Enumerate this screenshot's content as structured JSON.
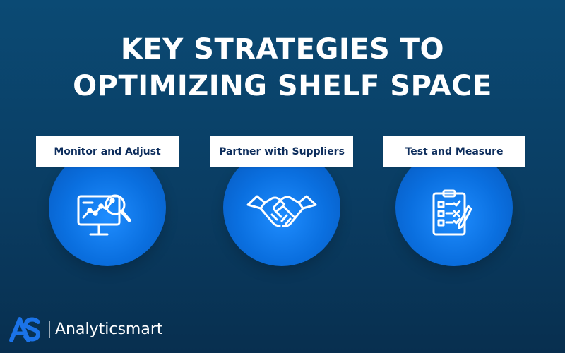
{
  "title": {
    "line1": "KEY STRATEGIES TO",
    "line2": "OPTIMIZING SHELF SPACE"
  },
  "strategies": [
    {
      "label": "Monitor and Adjust",
      "icon": "monitor-analytics-icon"
    },
    {
      "label": "Partner with Suppliers",
      "icon": "handshake-icon"
    },
    {
      "label": "Test and Measure",
      "icon": "checklist-clipboard-icon"
    }
  ],
  "brand": {
    "name": "Analyticsmart",
    "logo_icon": "as-logo-icon"
  },
  "colors": {
    "background_top": "#0b4a74",
    "background_bottom": "#082f4f",
    "circle": "#0a6fdf",
    "label_bg": "#ffffff",
    "label_text": "#0d2d5c",
    "logo_blue": "#1b73e8"
  }
}
